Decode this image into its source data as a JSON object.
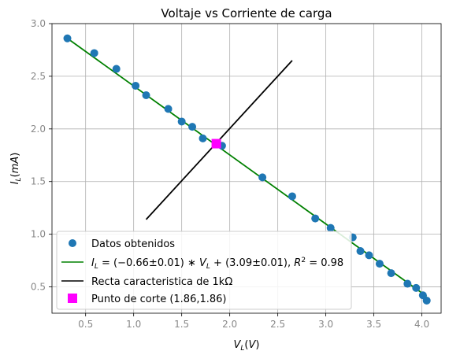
{
  "chart_data": {
    "type": "scatter",
    "title": "Voltaje vs Corriente de carga",
    "xlabel": "V_L(V)",
    "ylabel": "I_L(mA)",
    "xlim": [
      0.15,
      4.2
    ],
    "ylim": [
      0.25,
      3.0
    ],
    "x_ticks": [
      "0.5",
      "1.0",
      "1.5",
      "2.0",
      "2.5",
      "3.0",
      "3.5",
      "4.0"
    ],
    "y_ticks": [
      "0.5",
      "1.0",
      "1.5",
      "2.0",
      "2.5",
      "3.0"
    ],
    "x_tick_values": [
      0.5,
      1.0,
      1.5,
      2.0,
      2.5,
      3.0,
      3.5,
      4.0
    ],
    "y_tick_values": [
      0.5,
      1.0,
      1.5,
      2.0,
      2.5,
      3.0
    ],
    "grid": true,
    "legend_position": "lower-left",
    "series": [
      {
        "name": "Datos obtenidos",
        "kind": "scatter",
        "color": "#1f77b4",
        "x": [
          0.31,
          0.59,
          0.82,
          1.02,
          1.13,
          1.36,
          1.5,
          1.61,
          1.72,
          1.92,
          2.34,
          2.65,
          2.89,
          3.05,
          3.28,
          3.36,
          3.45,
          3.56,
          3.68,
          3.85,
          3.94,
          4.01,
          4.05
        ],
        "y": [
          2.86,
          2.72,
          2.57,
          2.41,
          2.32,
          2.19,
          2.07,
          2.02,
          1.91,
          1.84,
          1.54,
          1.36,
          1.15,
          1.06,
          0.97,
          0.84,
          0.8,
          0.72,
          0.63,
          0.53,
          0.49,
          0.42,
          0.37
        ]
      },
      {
        "name": "I_L = (-0.66±0.01)*V_L + (3.09±0.01), R^2 = 0.98",
        "kind": "line",
        "color": "#008000",
        "x": [
          0.31,
          4.05
        ],
        "y": [
          2.86,
          0.41
        ]
      },
      {
        "name": "Recta caracteristica de 1kΩ",
        "kind": "line",
        "color": "#000000",
        "x": [
          1.13,
          2.65
        ],
        "y": [
          1.14,
          2.65
        ]
      },
      {
        "name": "Punto de corte (1.86,1.86)",
        "kind": "marker",
        "color": "#ff00ff",
        "x": [
          1.86
        ],
        "y": [
          1.86
        ]
      }
    ],
    "legend": [
      "Datos obtenidos",
      "I_L = (-0.66±0.01)*V_L + (3.09±0.01), R^2 = 0.98",
      "Recta caracteristica de 1kΩ",
      "Punto de corte (1.86,1.86)"
    ]
  }
}
